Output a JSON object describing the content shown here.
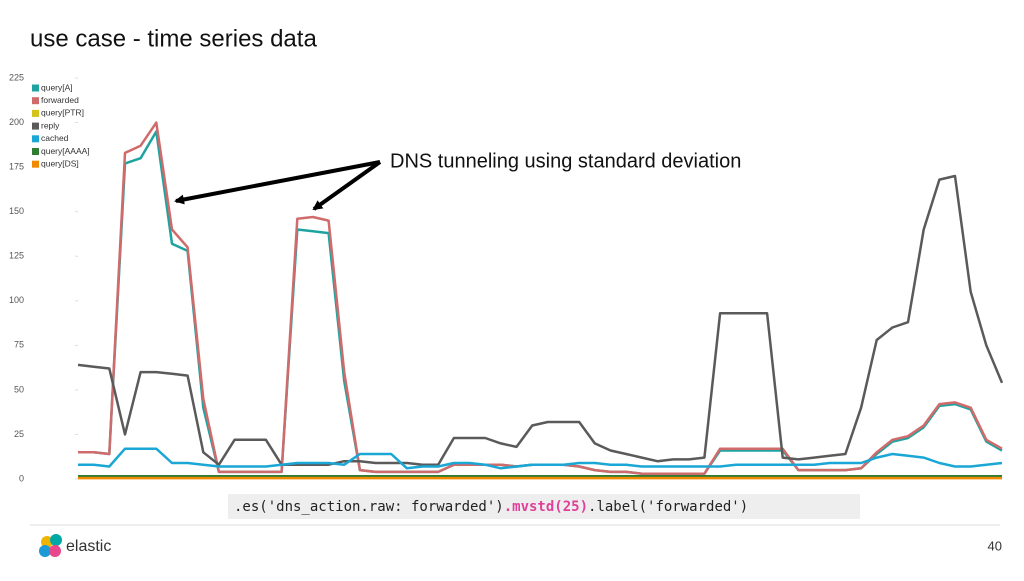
{
  "chart_data": {
    "type": "line",
    "title": "use case - time series data",
    "annotation": "DNS tunneling using standard deviation",
    "categories": [
      null,
      null,
      null,
      null,
      null,
      null,
      null,
      null,
      null,
      null,
      null,
      null,
      null,
      null,
      null,
      null,
      null,
      null,
      null,
      null,
      null,
      null,
      null,
      null,
      null,
      null,
      null,
      null,
      null,
      null,
      null,
      null,
      null,
      null,
      null,
      null,
      null,
      null,
      null,
      null,
      null,
      null,
      null,
      null,
      null,
      null,
      null,
      null,
      null,
      null,
      null,
      null,
      null,
      null,
      null,
      null,
      null,
      null,
      null,
      null
    ],
    "ylim": [
      0,
      225
    ],
    "yticks": [
      0,
      25,
      50,
      75,
      100,
      125,
      150,
      175,
      200,
      225
    ],
    "grid": false,
    "legend": "upper left",
    "series": [
      {
        "name": "query[A]",
        "color": "#1fa3a0",
        "values": [
          15,
          15,
          14,
          177,
          180,
          195,
          132,
          128,
          40,
          4,
          4,
          4,
          4,
          4,
          140,
          139,
          138,
          55,
          5,
          4,
          4,
          4,
          4,
          4,
          8,
          8,
          8,
          8,
          7,
          8,
          8,
          8,
          7,
          5,
          4,
          4,
          3,
          3,
          3,
          3,
          3,
          16,
          16,
          16,
          16,
          16,
          5,
          5,
          5,
          5,
          6,
          14,
          21,
          23,
          29,
          41,
          42,
          39,
          21,
          16
        ]
      },
      {
        "name": "forwarded",
        "color": "#d06b6b",
        "values": [
          15,
          15,
          14,
          183,
          187,
          200,
          140,
          130,
          45,
          4,
          4,
          4,
          4,
          4,
          146,
          147,
          145,
          60,
          5,
          4,
          4,
          4,
          4,
          4,
          8,
          8,
          8,
          8,
          7,
          8,
          8,
          8,
          7,
          5,
          4,
          4,
          3,
          3,
          3,
          3,
          3,
          17,
          17,
          17,
          17,
          17,
          5,
          5,
          5,
          5,
          6,
          15,
          22,
          24,
          30,
          42,
          43,
          40,
          22,
          17
        ]
      },
      {
        "name": "query[PTR]",
        "color": "#d4c21a",
        "values": [
          1,
          1,
          1,
          1,
          1,
          1,
          1,
          1,
          1,
          1,
          1,
          1,
          1,
          1,
          1,
          1,
          1,
          1,
          1,
          1,
          1,
          1,
          1,
          1,
          1,
          1,
          1,
          1,
          1,
          1,
          1,
          1,
          1,
          1,
          1,
          1,
          1,
          1,
          1,
          1,
          1,
          1,
          1,
          1,
          1,
          1,
          1,
          1,
          1,
          1,
          1,
          1,
          1,
          1,
          1,
          1,
          1,
          1,
          1,
          1
        ]
      },
      {
        "name": "reply",
        "color": "#5a5a5a",
        "values": [
          64,
          63,
          62,
          25,
          60,
          60,
          59,
          58,
          15,
          8,
          22,
          22,
          22,
          8,
          8,
          8,
          8,
          10,
          10,
          9,
          9,
          9,
          8,
          8,
          23,
          23,
          23,
          20,
          18,
          30,
          32,
          32,
          32,
          20,
          16,
          14,
          12,
          10,
          11,
          11,
          12,
          93,
          93,
          93,
          93,
          12,
          11,
          12,
          13,
          14,
          40,
          78,
          85,
          88,
          140,
          168,
          170,
          105,
          75,
          54
        ]
      },
      {
        "name": "cached",
        "color": "#1aa7d6",
        "values": [
          8,
          8,
          7,
          17,
          17,
          17,
          9,
          9,
          8,
          7,
          7,
          7,
          7,
          8,
          9,
          9,
          9,
          8,
          14,
          14,
          14,
          6,
          7,
          7,
          9,
          9,
          8,
          6,
          7,
          8,
          8,
          8,
          9,
          9,
          8,
          8,
          7,
          7,
          7,
          7,
          7,
          7,
          8,
          8,
          8,
          8,
          8,
          8,
          9,
          9,
          9,
          12,
          14,
          13,
          12,
          9,
          7,
          7,
          8,
          9
        ]
      },
      {
        "name": "query[AAAA]",
        "color": "#2e7d32",
        "values": [
          1.5,
          1.5,
          1.5,
          1.5,
          1.5,
          1.5,
          1.5,
          1.5,
          1.5,
          1.5,
          1.5,
          1.5,
          1.5,
          1.5,
          1.5,
          1.5,
          1.5,
          1.5,
          1.5,
          1.5,
          1.5,
          1.5,
          1.5,
          1.5,
          1.5,
          1.5,
          1.5,
          1.5,
          1.5,
          1.5,
          1.5,
          1.5,
          1.5,
          1.5,
          1.5,
          1.5,
          1.5,
          1.5,
          1.5,
          1.5,
          1.5,
          1.5,
          1.5,
          1.5,
          1.5,
          1.5,
          1.5,
          1.5,
          1.5,
          1.5,
          1.5,
          1.5,
          1.5,
          1.5,
          1.5,
          1.5,
          1.5,
          1.5,
          1.5,
          1.5
        ]
      },
      {
        "name": "query[DS]",
        "color": "#f08a00",
        "values": [
          0.5,
          0.5,
          0.5,
          0.5,
          0.5,
          0.5,
          0.5,
          0.5,
          0.5,
          0.5,
          0.5,
          0.5,
          0.5,
          0.5,
          0.5,
          0.5,
          0.5,
          0.5,
          0.5,
          0.5,
          0.5,
          0.5,
          0.5,
          0.5,
          0.5,
          0.5,
          0.5,
          0.5,
          0.5,
          0.5,
          0.5,
          0.5,
          0.5,
          0.5,
          0.5,
          0.5,
          0.5,
          0.5,
          0.5,
          0.5,
          0.5,
          0.5,
          0.5,
          0.5,
          0.5,
          0.5,
          0.5,
          0.5,
          0.5,
          0.5,
          0.5,
          0.5,
          0.5,
          0.5,
          0.5,
          0.5,
          0.5,
          0.5,
          0.5,
          0.5
        ]
      }
    ]
  },
  "code": {
    "before": ".es('dns_action.raw: forwarded')",
    "highlight": ".mvstd(25)",
    "after": ".label('forwarded')"
  },
  "footer": {
    "logo": "elastic",
    "page": "40"
  }
}
